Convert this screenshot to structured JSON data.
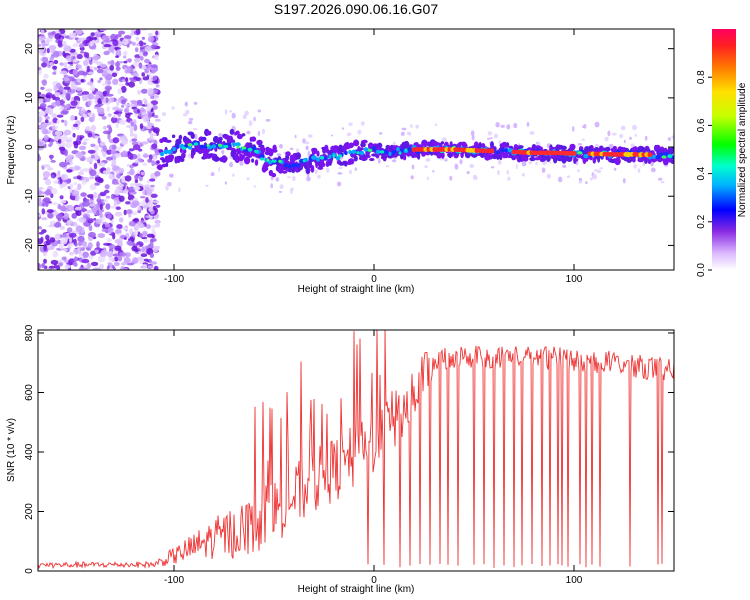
{
  "title": "S197.2026.090.06.16.G07",
  "chart_data": [
    {
      "type": "heatmap",
      "xlabel": "Height of straight line (km)",
      "ylabel": "Frequency (Hz)",
      "xlim": [
        -168,
        150
      ],
      "ylim": [
        -25,
        24
      ],
      "xticks": [
        -100,
        0,
        100
      ],
      "yticks": [
        -20,
        -10,
        0,
        10,
        20
      ],
      "colorbar": {
        "label": "Normalized spectral amplitude",
        "range": [
          0,
          1
        ],
        "ticks": [
          "0.0",
          "0.2",
          "0.4",
          "0.6",
          "0.8"
        ]
      },
      "noise_region_x": [
        -168,
        -108
      ],
      "ridge": {
        "x": [
          -108,
          -100,
          -90,
          -80,
          -70,
          -60,
          -55,
          -50,
          -40,
          -30,
          -20,
          -10,
          0,
          5,
          10,
          20,
          30,
          40,
          50,
          60,
          70,
          80,
          90,
          100,
          110,
          120,
          130,
          140,
          150
        ],
        "freq": [
          -1.5,
          -0.5,
          0.5,
          0.0,
          0.5,
          -0.5,
          -2.5,
          -3.0,
          -3.5,
          -2.5,
          -2.0,
          -1.0,
          -0.5,
          -1.0,
          -1.0,
          -0.5,
          -0.5,
          -0.5,
          -0.7,
          -0.8,
          -1.0,
          -1.2,
          -1.2,
          -1.3,
          -1.4,
          -1.5,
          -1.5,
          -1.6,
          -1.8
        ]
      },
      "strong_segments_x": [
        [
          20,
          60
        ],
        [
          70,
          100
        ],
        [
          108,
          138
        ]
      ]
    },
    {
      "type": "line",
      "xlabel": "Height of straight line (km)",
      "ylabel": "SNR (10 * v/v)",
      "xlim": [
        -168,
        150
      ],
      "ylim": [
        0,
        810
      ],
      "xticks": [
        -100,
        0,
        100
      ],
      "yticks": [
        0,
        200,
        400,
        600,
        800
      ],
      "color": "#ee3333",
      "envelope": {
        "x": [
          -168,
          -110,
          -100,
          -90,
          -80,
          -70,
          -60,
          -50,
          -40,
          -30,
          -20,
          -10,
          0,
          10,
          20,
          25,
          30,
          40,
          60,
          80,
          100,
          120,
          140,
          150
        ],
        "mean": [
          20,
          22,
          50,
          80,
          110,
          130,
          160,
          200,
          250,
          300,
          340,
          380,
          420,
          500,
          600,
          660,
          700,
          720,
          720,
          720,
          710,
          700,
          680,
          670
        ],
        "amp": [
          10,
          10,
          30,
          50,
          70,
          90,
          100,
          110,
          110,
          110,
          110,
          110,
          110,
          120,
          110,
          80,
          40,
          40,
          40,
          40,
          40,
          40,
          40,
          40
        ]
      },
      "dropouts_x": [
        -3,
        5,
        13,
        18,
        23,
        28,
        33,
        37,
        42,
        50,
        55,
        60,
        65,
        70,
        74,
        79,
        84,
        88,
        92,
        94,
        97,
        103,
        106,
        109,
        113,
        128,
        142,
        144
      ]
    }
  ]
}
